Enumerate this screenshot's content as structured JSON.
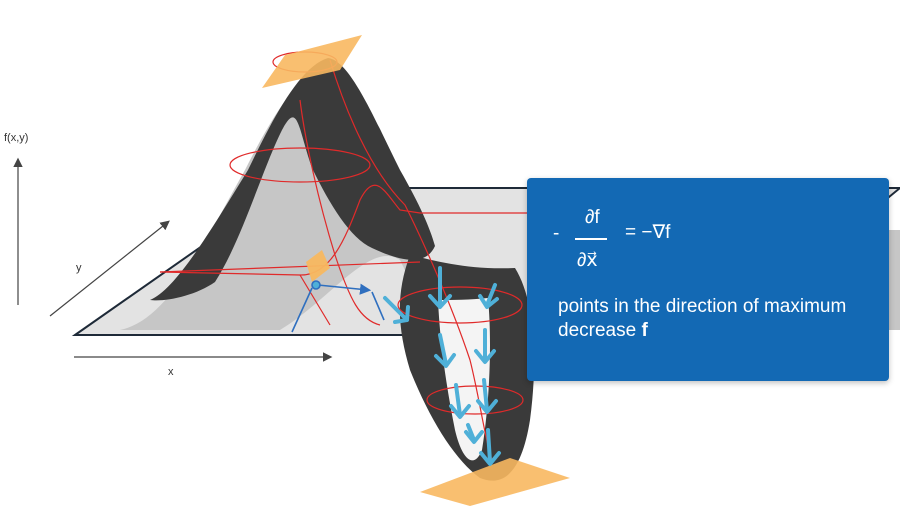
{
  "axes": {
    "vertical_label": "f(x,y)",
    "depth_label": "y",
    "horizontal_label": "x"
  },
  "info_card": {
    "prefix": "-",
    "numerator": "∂f",
    "denominator": "∂x⃗",
    "result": "= −∇f",
    "caption": "points in the direction of maximum decrease",
    "caption_emphasis": "f",
    "background_color": "#1369b4"
  },
  "colors": {
    "surface_dark": "#3a3a3a",
    "surface_light": "#c6c6c6",
    "plane": "#e3e3e3",
    "contour": "#e02a2a",
    "arrow": "#4fb0d8",
    "tangent_plane": "#f8b860",
    "path": "#2f6fbf"
  },
  "icons": [
    "gradient-arrow-icon",
    "tangent-plane-icon"
  ]
}
